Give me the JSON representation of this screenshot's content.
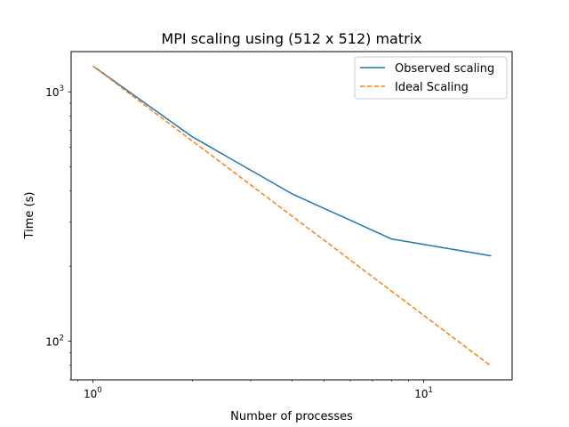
{
  "chart_data": {
    "type": "line",
    "title": "MPI scaling using (512 x 512) matrix",
    "xlabel": "Number of processes",
    "ylabel": "Time (s)",
    "xscale": "log",
    "yscale": "log",
    "xlim": [
      0.86,
      18.5
    ],
    "ylim": [
      70,
      1450
    ],
    "x": [
      1,
      2,
      4,
      8,
      16
    ],
    "x_ticks": [
      {
        "value": 1,
        "base": "10",
        "exp": "0"
      },
      {
        "value": 10,
        "base": "10",
        "exp": "1"
      }
    ],
    "y_ticks": [
      {
        "value": 100,
        "base": "10",
        "exp": "2"
      },
      {
        "value": 1000,
        "base": "10",
        "exp": "3"
      }
    ],
    "legend_position": "top-right",
    "grid": false,
    "series": [
      {
        "name": "Observed scaling",
        "values": [
          1270,
          660,
          390,
          257,
          220
        ],
        "color": "#1f77b4",
        "style": "solid"
      },
      {
        "name": "Ideal Scaling",
        "values": [
          1270,
          635,
          317.5,
          158.75,
          79.375
        ],
        "color": "#ff7f0e",
        "style": "dashed"
      }
    ]
  }
}
